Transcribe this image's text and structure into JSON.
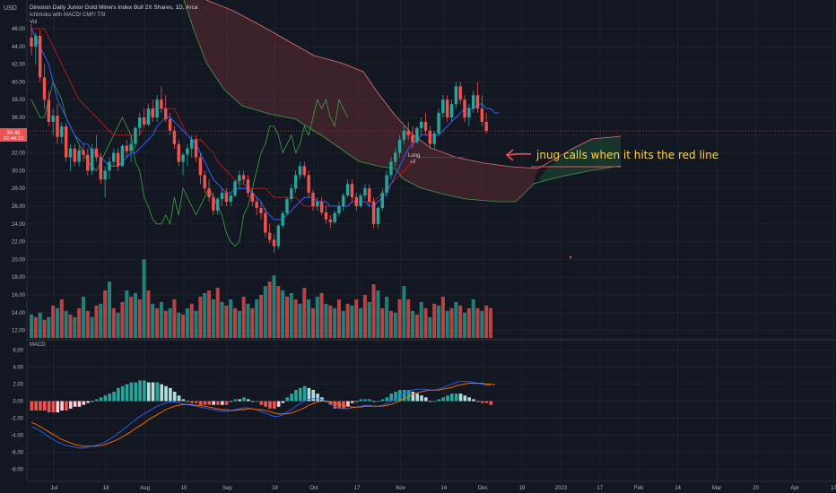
{
  "header": {
    "currency": "USD",
    "title": "Direxion Daily Junior Gold Miners Index Bull 2X Shares, 1D, Arca",
    "indicators": "Ichimoku with MACD/ CMF/ TSI",
    "vol_label": "Vol",
    "macd_label": "MACD"
  },
  "price_tag": {
    "value": "34.48",
    "countdown": "01:44:13",
    "color": "#ef5350"
  },
  "signal_label": {
    "line1": "Long",
    "line2": "+2"
  },
  "annotation": "jnug calls when it hits the red line",
  "colors": {
    "up": "#26a69a",
    "down": "#ef5350",
    "tenkan": "#2962ff",
    "kijun": "#b71c1c",
    "chikou": "#43a047",
    "cloud_bear": "#5d2a32",
    "cloud_bull": "#1b4332",
    "hist_up_strong": "#26a69a",
    "hist_up_weak": "#b2dfdb",
    "hist_down_strong": "#ef5350",
    "hist_down_weak": "#ffcdd2",
    "macd_line": "#2962ff",
    "signal_line": "#ff6d00"
  },
  "chart_data": {
    "type": "candlestick",
    "price_axis": {
      "ylim": [
        10.8,
        47.5
      ],
      "ticks": [
        "46.00",
        "44.00",
        "42.00",
        "40.00",
        "38.00",
        "36.00",
        "34.00",
        "32.00",
        "30.00",
        "28.00",
        "26.00",
        "24.00",
        "22.00",
        "20.00",
        "18.00",
        "16.00",
        "14.00",
        "12.00"
      ]
    },
    "macd_axis": {
      "ylim": [
        -9,
        7.5
      ],
      "ticks": [
        "6.00",
        "4.00",
        "2.00",
        "0.00",
        "-2.00",
        "-4.00",
        "-6.00",
        "-8.00"
      ]
    },
    "x_labels": [
      "Jul",
      "18",
      "Aug",
      "15",
      "Sep",
      "19",
      "Oct",
      "17",
      "Nov",
      "14",
      "Dec",
      "19",
      "2023",
      "17",
      "Feb",
      "14",
      "Mar",
      "20",
      "Apr",
      "17"
    ],
    "x_label_bar_index": [
      5,
      17,
      26,
      35,
      45,
      56,
      65,
      75,
      85,
      95,
      104,
      113,
      122,
      131,
      140,
      149,
      158,
      167,
      176,
      185
    ],
    "candles": [
      [
        45,
        46.5,
        43,
        44
      ],
      [
        44,
        45.5,
        42,
        45.2
      ],
      [
        45.2,
        45.8,
        40,
        40.5
      ],
      [
        40.5,
        42,
        37,
        38
      ],
      [
        38,
        39,
        35,
        35.5
      ],
      [
        35.5,
        37,
        34,
        36.2
      ],
      [
        36.2,
        37.5,
        33,
        33.8
      ],
      [
        33.8,
        35.5,
        33,
        35
      ],
      [
        35,
        35.4,
        31,
        31.5
      ],
      [
        31.5,
        33,
        30,
        32.5
      ],
      [
        32.5,
        33,
        30.5,
        31
      ],
      [
        31,
        32.8,
        30.5,
        32.3
      ],
      [
        32.3,
        33,
        31,
        31.8
      ],
      [
        31.8,
        32.5,
        29.5,
        30
      ],
      [
        30,
        33,
        29.5,
        32.5
      ],
      [
        32.5,
        34,
        31,
        31.5
      ],
      [
        31.5,
        32,
        28.5,
        29
      ],
      [
        29,
        30.5,
        27,
        30
      ],
      [
        30,
        31.5,
        29,
        31
      ],
      [
        31,
        32.5,
        30.5,
        32
      ],
      [
        32,
        32.5,
        30,
        30.5
      ],
      [
        30.5,
        33,
        30.5,
        32.8
      ],
      [
        32.8,
        33.5,
        31.5,
        32.2
      ],
      [
        32.2,
        34,
        31,
        33
      ],
      [
        33,
        35,
        32.5,
        34.8
      ],
      [
        34.8,
        36.5,
        34,
        36
      ],
      [
        36,
        37,
        35,
        35.2
      ],
      [
        35.2,
        37.5,
        35,
        37
      ],
      [
        37,
        38,
        35.5,
        36
      ],
      [
        36,
        38.5,
        35.5,
        38
      ],
      [
        38,
        39.5,
        36.5,
        37
      ],
      [
        37,
        38.5,
        35.5,
        35.8
      ],
      [
        35.8,
        36.5,
        34,
        34.5
      ],
      [
        34.5,
        35,
        32.5,
        33
      ],
      [
        33,
        33.5,
        30.5,
        31
      ],
      [
        31,
        32,
        29.5,
        31.8
      ],
      [
        31.8,
        33,
        30.5,
        32.5
      ],
      [
        32.5,
        34,
        31.5,
        33.5
      ],
      [
        33.5,
        34,
        31,
        31.5
      ],
      [
        31.5,
        32,
        28.5,
        29.5
      ],
      [
        29.5,
        30,
        27.5,
        28
      ],
      [
        28,
        29,
        26.5,
        27
      ],
      [
        27,
        27.5,
        25,
        25.5
      ],
      [
        25.5,
        27,
        25,
        26.8
      ],
      [
        26.8,
        28,
        26,
        27.5
      ],
      [
        27.5,
        28,
        26,
        26.5
      ],
      [
        26.5,
        27.5,
        26,
        27.2
      ],
      [
        27.2,
        29,
        27,
        28.8
      ],
      [
        28.8,
        30,
        28,
        29.5
      ],
      [
        29.5,
        30,
        28.5,
        29
      ],
      [
        29,
        29.5,
        27,
        27.5
      ],
      [
        27.5,
        28,
        26,
        26.5
      ],
      [
        26.5,
        27,
        25,
        25.8
      ],
      [
        25.8,
        26.5,
        24.5,
        25.2
      ],
      [
        25.2,
        25.8,
        22.5,
        23
      ],
      [
        23,
        24,
        21.8,
        22.2
      ],
      [
        22.2,
        22.8,
        20.8,
        21.5
      ],
      [
        21.5,
        24,
        21.2,
        23.8
      ],
      [
        23.8,
        25.5,
        23.5,
        25.2
      ],
      [
        25.2,
        27,
        25,
        26.8
      ],
      [
        26.8,
        28.5,
        26.5,
        28
      ],
      [
        28,
        30,
        27.5,
        29.5
      ],
      [
        29.5,
        31,
        29,
        30.5
      ],
      [
        30.5,
        31,
        29.2,
        29.5
      ],
      [
        29.5,
        30,
        27,
        27.5
      ],
      [
        27.5,
        27.8,
        25.5,
        26
      ],
      [
        26,
        27,
        25.5,
        26.5
      ],
      [
        26.5,
        27,
        25,
        25.3
      ],
      [
        25.3,
        26,
        24,
        24.5
      ],
      [
        24.5,
        25,
        23.5,
        24.2
      ],
      [
        24.2,
        25.5,
        24,
        25.2
      ],
      [
        25.2,
        26.5,
        24.8,
        26
      ],
      [
        26,
        27.5,
        25.5,
        27.2
      ],
      [
        27.2,
        29,
        27,
        28.5
      ],
      [
        28.5,
        29,
        26.5,
        27
      ],
      [
        27,
        27.5,
        25.5,
        26
      ],
      [
        26,
        27.5,
        25.8,
        27.2
      ],
      [
        27.2,
        28.5,
        26.8,
        28
      ],
      [
        28,
        28.5,
        26,
        26.5
      ],
      [
        26.5,
        27,
        23.5,
        24
      ],
      [
        24,
        26,
        23.5,
        25.8
      ],
      [
        25.8,
        28,
        25.5,
        27.5
      ],
      [
        27.5,
        30,
        27,
        29.5
      ],
      [
        29.5,
        31.5,
        29,
        31
      ],
      [
        31,
        32.5,
        30.5,
        32
      ],
      [
        32,
        34,
        31.5,
        33.5
      ],
      [
        33.5,
        35,
        33,
        34.5
      ],
      [
        34.5,
        35.5,
        33.5,
        34
      ],
      [
        34,
        35,
        32.5,
        33.2
      ],
      [
        33.2,
        35,
        33,
        34.8
      ],
      [
        34.8,
        36,
        34,
        35.5
      ],
      [
        35.5,
        36.5,
        34,
        34.5
      ],
      [
        34.5,
        35,
        32.5,
        33
      ],
      [
        33,
        34.5,
        32.5,
        34.2
      ],
      [
        34.2,
        37,
        34,
        36.5
      ],
      [
        36.5,
        38.5,
        36,
        38
      ],
      [
        38,
        38.5,
        35.5,
        36
      ],
      [
        36,
        38,
        35.5,
        37.5
      ],
      [
        37.5,
        40,
        37,
        39.5
      ],
      [
        39.5,
        40,
        37.5,
        38
      ],
      [
        38,
        38.5,
        35.5,
        36
      ],
      [
        36,
        37.5,
        35,
        37
      ],
      [
        37,
        39,
        36.5,
        38.5
      ],
      [
        38.5,
        40,
        36.5,
        37
      ],
      [
        37,
        38.5,
        35,
        35.5
      ],
      [
        35.5,
        36.5,
        34.2,
        34.48
      ]
    ],
    "volume": [
      [
        13.8,
        1
      ],
      [
        13.5,
        0
      ],
      [
        14,
        1
      ],
      [
        13.2,
        0
      ],
      [
        13.5,
        1
      ],
      [
        14.8,
        0
      ],
      [
        14.5,
        1
      ],
      [
        15.5,
        0
      ],
      [
        14.2,
        1
      ],
      [
        13.8,
        0
      ],
      [
        13.5,
        1
      ],
      [
        14.5,
        0
      ],
      [
        15.8,
        1
      ],
      [
        14.2,
        0
      ],
      [
        13.5,
        1
      ],
      [
        14.8,
        0
      ],
      [
        15,
        1
      ],
      [
        16.5,
        0
      ],
      [
        17.5,
        1
      ],
      [
        14.5,
        0
      ],
      [
        14,
        1
      ],
      [
        15.2,
        0
      ],
      [
        16.5,
        1
      ],
      [
        15.8,
        0
      ],
      [
        16.2,
        1
      ],
      [
        15.5,
        0
      ],
      [
        20,
        1
      ],
      [
        16.5,
        0
      ],
      [
        15,
        1
      ],
      [
        14.5,
        0
      ],
      [
        15.2,
        1
      ],
      [
        14.2,
        0
      ],
      [
        14.5,
        1
      ],
      [
        15.5,
        0
      ],
      [
        14,
        1
      ],
      [
        13.8,
        0
      ],
      [
        14.5,
        1
      ],
      [
        15,
        0
      ],
      [
        14.2,
        1
      ],
      [
        15.8,
        0
      ],
      [
        16.2,
        1
      ],
      [
        16.5,
        0
      ],
      [
        15.5,
        1
      ],
      [
        16.8,
        0
      ],
      [
        15.2,
        1
      ],
      [
        14.8,
        0
      ],
      [
        15.5,
        1
      ],
      [
        14.5,
        0
      ],
      [
        14.2,
        1
      ],
      [
        15.8,
        0
      ],
      [
        15,
        1
      ],
      [
        14.5,
        0
      ],
      [
        15.5,
        1
      ],
      [
        16,
        0
      ],
      [
        17,
        1
      ],
      [
        17.5,
        0
      ],
      [
        18.2,
        1
      ],
      [
        17,
        0
      ],
      [
        16.5,
        1
      ],
      [
        15.8,
        0
      ],
      [
        16.2,
        1
      ],
      [
        15.5,
        0
      ],
      [
        15,
        1
      ],
      [
        16.8,
        0
      ],
      [
        15.5,
        1
      ],
      [
        14.5,
        0
      ],
      [
        15.8,
        1
      ],
      [
        16.2,
        0
      ],
      [
        15,
        1
      ],
      [
        14.8,
        0
      ],
      [
        14.5,
        1
      ],
      [
        15.5,
        0
      ],
      [
        14.2,
        1
      ],
      [
        15,
        0
      ],
      [
        14.8,
        1
      ],
      [
        15.5,
        0
      ],
      [
        14.5,
        1
      ],
      [
        16,
        0
      ],
      [
        15.2,
        1
      ],
      [
        17.2,
        0
      ],
      [
        16.5,
        1
      ],
      [
        14.5,
        0
      ],
      [
        15.8,
        1
      ],
      [
        14.2,
        0
      ],
      [
        14,
        1
      ],
      [
        15.5,
        0
      ],
      [
        17,
        1
      ],
      [
        15.5,
        0
      ],
      [
        14.2,
        1
      ],
      [
        13.8,
        0
      ],
      [
        15.2,
        1
      ],
      [
        14.5,
        0
      ],
      [
        13.5,
        1
      ],
      [
        15,
        0
      ],
      [
        14.8,
        1
      ],
      [
        15.8,
        0
      ],
      [
        14.2,
        1
      ],
      [
        14.5,
        0
      ],
      [
        15.2,
        1
      ],
      [
        14.8,
        0
      ],
      [
        14,
        1
      ],
      [
        14.5,
        0
      ],
      [
        15.5,
        1
      ],
      [
        14.5,
        0
      ],
      [
        14.2,
        1
      ],
      [
        14.8,
        0
      ],
      [
        14.5,
        0
      ]
    ],
    "tenkan": [
      46,
      45,
      44,
      43,
      42,
      40,
      38,
      37,
      36,
      35,
      34,
      33.5,
      33,
      33,
      32,
      32,
      31.5,
      31,
      30.5,
      30.5,
      30.5,
      31,
      31.5,
      32,
      32,
      32.5,
      33,
      33.5,
      34,
      35,
      35.5,
      36,
      36,
      35.5,
      35,
      34.5,
      34,
      33.5,
      33,
      32,
      31,
      30,
      29,
      28.5,
      28,
      27.5,
      27.5,
      28,
      28,
      28,
      28,
      27.5,
      27,
      26.5,
      25.5,
      25,
      24.5,
      24.5,
      24.5,
      25,
      25.5,
      26,
      26.5,
      27,
      27,
      27,
      26.5,
      26.5,
      26.5,
      26,
      26,
      26,
      26,
      26,
      26.5,
      26.5,
      26.5,
      26.5,
      26,
      26,
      26.5,
      27,
      27.5,
      28.5,
      29.5,
      30.5,
      31.5,
      32.5,
      33,
      33.5,
      34,
      34,
      34,
      34,
      34,
      34.5,
      35,
      35.5,
      36,
      36.5,
      37,
      37,
      37,
      37.5,
      37.5,
      37,
      37,
      36.5,
      36.5
    ],
    "kijun": [
      46,
      46,
      46,
      46,
      45,
      44,
      43,
      42,
      41,
      40,
      39,
      38,
      37.5,
      37,
      36.5,
      36,
      35.5,
      35,
      34.5,
      34,
      34,
      34,
      34,
      34,
      34,
      34,
      35,
      36,
      37,
      37,
      37,
      37,
      37,
      37,
      36,
      35,
      34,
      33.5,
      33.5,
      33.5,
      33,
      32.5,
      32,
      31,
      30.5,
      30,
      29.5,
      29,
      28.5,
      28.5,
      28,
      28,
      28,
      28,
      28,
      27.5,
      27,
      27,
      27,
      27,
      27,
      27,
      26.5,
      26,
      26,
      26,
      26,
      26,
      26,
      26,
      26,
      26,
      26,
      26,
      26.5,
      26.5,
      26.5,
      26.5,
      26.5,
      26.5,
      27,
      27.5,
      28,
      28.5,
      29,
      29.5,
      30,
      30.5,
      31,
      31.5,
      31.5,
      31.5,
      31.5,
      31.5,
      31.5,
      31.5,
      31.5,
      31.5,
      31.5,
      31.5,
      31.5
    ],
    "chikou": [
      38,
      37,
      36,
      36,
      38,
      40,
      39,
      38,
      36,
      35,
      34,
      33,
      32,
      31,
      30.5,
      30,
      31,
      32,
      33,
      34,
      35,
      36,
      35,
      34,
      31,
      30,
      27,
      26,
      24.5,
      24,
      24,
      25,
      24,
      27,
      25,
      28,
      27,
      26,
      25,
      26,
      27,
      28,
      27,
      26,
      25,
      23,
      22,
      21.5,
      22,
      25,
      26,
      28,
      30,
      32,
      33,
      35,
      35,
      34,
      32,
      33,
      34,
      32,
      33,
      35,
      34,
      36,
      38,
      37,
      38,
      36,
      35,
      38,
      37,
      36
    ],
    "cloud_spanA": [],
    "cloud_spanB": [],
    "macd_line": [
      -3,
      -3.2,
      -3.5,
      -3.8,
      -4.2,
      -4.5,
      -4.8,
      -5,
      -5.2,
      -5.3,
      -5.4,
      -5.5,
      -5.5,
      -5.4,
      -5.3,
      -5.2,
      -5,
      -4.8,
      -4.5,
      -4.2,
      -3.8,
      -3.4,
      -3,
      -2.6,
      -2.2,
      -1.8,
      -1.5,
      -1.2,
      -0.9,
      -0.6,
      -0.4,
      -0.2,
      -0.1,
      -0.1,
      -0.2,
      -0.3,
      -0.4,
      -0.5,
      -0.6,
      -0.7,
      -0.8,
      -0.9,
      -1,
      -1.1,
      -1.2,
      -1.2,
      -1.1,
      -1,
      -0.9,
      -0.8,
      -0.8,
      -0.9,
      -1,
      -1.2,
      -1.4,
      -1.6,
      -1.8,
      -1.8,
      -1.6,
      -1.3,
      -1,
      -0.6,
      -0.3,
      0,
      0.2,
      0.3,
      0.3,
      0.2,
      0,
      -0.3,
      -0.6,
      -0.8,
      -0.9,
      -0.9,
      -0.8,
      -0.7,
      -0.6,
      -0.5,
      -0.5,
      -0.6,
      -0.6,
      -0.5,
      -0.3,
      0,
      0.3,
      0.6,
      0.9,
      1.1,
      1.3,
      1.4,
      1.4,
      1.4,
      1.3,
      1.3,
      1.4,
      1.6,
      1.8,
      2,
      2.2,
      2.3,
      2.3,
      2.3,
      2.2,
      2.1,
      2,
      1.9,
      1.8
    ],
    "signal_line": [
      -2.5,
      -2.7,
      -3,
      -3.3,
      -3.6,
      -3.9,
      -4.2,
      -4.5,
      -4.7,
      -4.9,
      -5.1,
      -5.2,
      -5.3,
      -5.3,
      -5.3,
      -5.3,
      -5.2,
      -5.1,
      -4.9,
      -4.7,
      -4.5,
      -4.2,
      -3.9,
      -3.6,
      -3.2,
      -2.9,
      -2.6,
      -2.2,
      -1.9,
      -1.6,
      -1.3,
      -1,
      -0.8,
      -0.6,
      -0.5,
      -0.4,
      -0.4,
      -0.4,
      -0.5,
      -0.5,
      -0.6,
      -0.7,
      -0.8,
      -0.9,
      -1,
      -1,
      -1.1,
      -1.1,
      -1,
      -1,
      -0.9,
      -0.9,
      -1,
      -1,
      -1.1,
      -1.2,
      -1.4,
      -1.5,
      -1.5,
      -1.5,
      -1.4,
      -1.2,
      -1,
      -0.8,
      -0.5,
      -0.3,
      -0.1,
      0,
      0,
      -0.1,
      -0.2,
      -0.4,
      -0.5,
      -0.6,
      -0.7,
      -0.7,
      -0.7,
      -0.6,
      -0.6,
      -0.6,
      -0.6,
      -0.6,
      -0.5,
      -0.4,
      -0.2,
      0,
      0.3,
      0.5,
      0.8,
      1,
      1.1,
      1.2,
      1.3,
      1.3,
      1.3,
      1.4,
      1.5,
      1.6,
      1.8,
      1.9,
      2,
      2.1,
      2.1,
      2.1,
      2.1,
      2,
      2,
      1.9
    ]
  }
}
